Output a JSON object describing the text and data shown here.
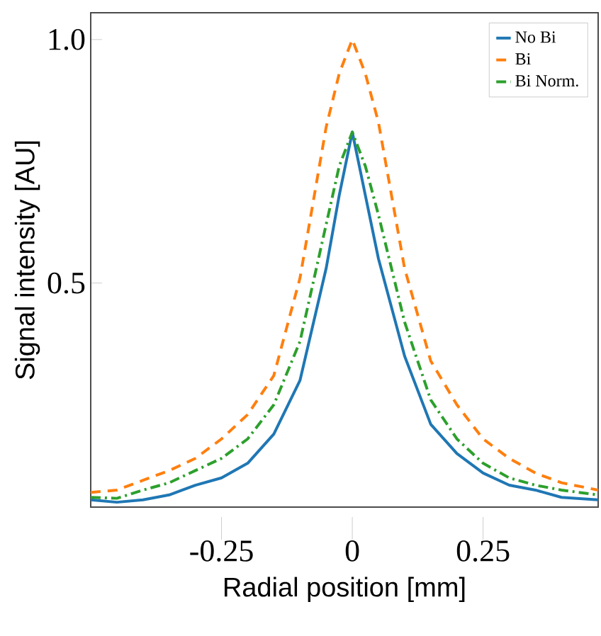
{
  "chart_data": {
    "type": "line",
    "xlabel": "Radial position [mm]",
    "ylabel": "Signal intensity [AU]",
    "x": [
      -0.5,
      -0.45,
      -0.4,
      -0.35,
      -0.3,
      -0.25,
      -0.2,
      -0.15,
      -0.1,
      -0.05,
      -0.025,
      0,
      0.025,
      0.05,
      0.1,
      0.15,
      0.2,
      0.25,
      0.3,
      0.35,
      0.4,
      0.47
    ],
    "series": [
      {
        "name": "No Bi",
        "color": "#1f77b4",
        "line_style": "solid",
        "values": [
          0.055,
          0.05,
          0.055,
          0.065,
          0.085,
          0.1,
          0.13,
          0.19,
          0.3,
          0.53,
          0.68,
          0.81,
          0.68,
          0.55,
          0.35,
          0.21,
          0.15,
          0.11,
          0.085,
          0.075,
          0.06,
          0.055
        ]
      },
      {
        "name": "Bi",
        "color": "#ff7f0e",
        "line_style": "dashed",
        "values": [
          0.07,
          0.075,
          0.095,
          0.115,
          0.14,
          0.18,
          0.23,
          0.31,
          0.51,
          0.82,
          0.93,
          1.0,
          0.93,
          0.83,
          0.53,
          0.34,
          0.25,
          0.18,
          0.14,
          0.11,
          0.09,
          0.075
        ]
      },
      {
        "name": "Bi Norm.",
        "color": "#2ca02c",
        "line_style": "dashdot",
        "values": [
          0.06,
          0.058,
          0.075,
          0.09,
          0.115,
          0.14,
          0.18,
          0.25,
          0.38,
          0.62,
          0.74,
          0.81,
          0.74,
          0.64,
          0.42,
          0.26,
          0.18,
          0.13,
          0.1,
          0.085,
          0.075,
          0.065
        ]
      }
    ],
    "xlim": [
      -0.5,
      0.47
    ],
    "ylim": [
      0.04,
      1.055
    ],
    "xticks": [
      -0.25,
      0,
      0.25
    ],
    "yticks": [
      0.5,
      {
        "value": 1,
        "label": "1.0"
      }
    ],
    "legend": "top right",
    "grid": false
  }
}
